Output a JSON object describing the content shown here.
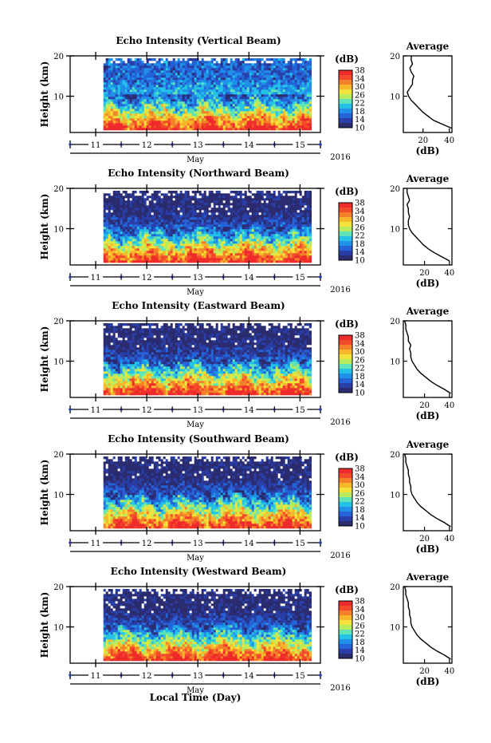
{
  "figure": {
    "xlabel": "Local Time (Day)",
    "month_label": "May",
    "year_label": "2016",
    "colorbar_unit": "(dB)",
    "average_title": "Average",
    "average_xlabel": "(dB)",
    "colors": {
      "cmap": [
        "#2b2c6f",
        "#2a3ea8",
        "#2563d8",
        "#1f91e8",
        "#22c3e6",
        "#5fe3b8",
        "#b8ec5c",
        "#f2e23a",
        "#f7b72a",
        "#f5802a",
        "#f24a2a",
        "#ee2a2a"
      ]
    }
  },
  "chart_data": [
    {
      "type": "heatmap",
      "title": "Echo Intensity (Vertical Beam)",
      "ylabel": "Height (km)",
      "xlim": [
        10.5,
        15.4
      ],
      "ylim": [
        1,
        20
      ],
      "x_ticks": [
        11,
        12,
        13,
        14,
        15
      ],
      "y_ticks": [
        10,
        20
      ],
      "data_x_range": [
        11.15,
        15.25
      ],
      "colorbar_ticks": [
        10,
        14,
        18,
        22,
        26,
        30,
        34,
        38
      ],
      "clim": [
        10,
        38
      ],
      "average_profile": {
        "xlim": [
          5,
          42
        ],
        "x_ticks": [
          20,
          40
        ],
        "ylim": [
          1,
          20
        ],
        "y_ticks": [
          10,
          20
        ],
        "height": [
          2,
          3,
          4,
          5,
          6,
          7,
          8,
          9,
          10,
          11,
          12,
          13,
          14,
          15,
          16,
          17,
          18,
          19,
          20
        ],
        "db": [
          42,
          35,
          28,
          24,
          20,
          17,
          14,
          11,
          9,
          8,
          10,
          12,
          12,
          13,
          11,
          10,
          12,
          11,
          11
        ]
      }
    },
    {
      "type": "heatmap",
      "title": "Echo Intensity (Northward Beam)",
      "ylabel": "Height (km)",
      "xlim": [
        10.5,
        15.4
      ],
      "ylim": [
        1,
        20
      ],
      "x_ticks": [
        11,
        12,
        13,
        14,
        15
      ],
      "y_ticks": [
        10,
        20
      ],
      "data_x_range": [
        11.15,
        15.25
      ],
      "colorbar_ticks": [
        10,
        14,
        18,
        22,
        26,
        30,
        34,
        38
      ],
      "clim": [
        10,
        38
      ],
      "average_profile": {
        "xlim": [
          3,
          42
        ],
        "x_ticks": [
          20,
          40
        ],
        "ylim": [
          1,
          20
        ],
        "y_ticks": [
          10,
          20
        ],
        "height": [
          2,
          3,
          4,
          5,
          6,
          7,
          8,
          9,
          10,
          11,
          12,
          13,
          14,
          15,
          16,
          17,
          18,
          19,
          20
        ],
        "db": [
          40,
          34,
          28,
          23,
          19,
          16,
          13,
          10,
          8,
          7,
          7,
          8,
          7,
          7,
          6,
          8,
          7,
          6,
          6
        ]
      }
    },
    {
      "type": "heatmap",
      "title": "Echo Intensity (Eastward Beam)",
      "ylabel": "Height (km)",
      "xlim": [
        10.5,
        15.4
      ],
      "ylim": [
        1,
        20
      ],
      "x_ticks": [
        11,
        12,
        13,
        14,
        15
      ],
      "y_ticks": [
        10,
        20
      ],
      "data_x_range": [
        11.15,
        15.25
      ],
      "colorbar_ticks": [
        10,
        14,
        18,
        22,
        26,
        30,
        34,
        38
      ],
      "clim": [
        10,
        38
      ],
      "average_profile": {
        "xlim": [
          3,
          42
        ],
        "x_ticks": [
          20,
          40
        ],
        "ylim": [
          1,
          20
        ],
        "y_ticks": [
          10,
          20
        ],
        "height": [
          2,
          3,
          4,
          5,
          6,
          7,
          8,
          9,
          10,
          11,
          12,
          13,
          14,
          15,
          16,
          17,
          18,
          19,
          20
        ],
        "db": [
          41,
          36,
          30,
          25,
          21,
          17,
          14,
          12,
          10,
          9,
          9,
          8,
          9,
          7,
          7,
          6,
          5,
          5,
          4
        ]
      }
    },
    {
      "type": "heatmap",
      "title": "Echo Intensity (Southward Beam)",
      "ylabel": "Height (km)",
      "xlim": [
        10.5,
        15.4
      ],
      "ylim": [
        1,
        20
      ],
      "x_ticks": [
        11,
        12,
        13,
        14,
        15
      ],
      "y_ticks": [
        10,
        20
      ],
      "data_x_range": [
        11.15,
        15.25
      ],
      "colorbar_ticks": [
        10,
        14,
        18,
        22,
        26,
        30,
        34,
        38
      ],
      "clim": [
        10,
        38
      ],
      "average_profile": {
        "xlim": [
          3,
          42
        ],
        "x_ticks": [
          20,
          40
        ],
        "ylim": [
          1,
          20
        ],
        "y_ticks": [
          10,
          20
        ],
        "height": [
          2,
          3,
          4,
          5,
          6,
          7,
          8,
          9,
          10,
          11,
          12,
          13,
          14,
          15,
          16,
          17,
          18,
          19,
          20
        ],
        "db": [
          41,
          36,
          30,
          25,
          21,
          17,
          14,
          12,
          10,
          9,
          9,
          8,
          8,
          7,
          7,
          6,
          5,
          5,
          4
        ]
      }
    },
    {
      "type": "heatmap",
      "title": "Echo Intensity (Westward Beam)",
      "ylabel": "Height (km)",
      "xlim": [
        10.5,
        15.4
      ],
      "ylim": [
        1,
        20
      ],
      "x_ticks": [
        11,
        12,
        13,
        14,
        15
      ],
      "y_ticks": [
        10,
        20
      ],
      "data_x_range": [
        11.15,
        15.25
      ],
      "colorbar_ticks": [
        10,
        14,
        18,
        22,
        26,
        30,
        34,
        38
      ],
      "clim": [
        10,
        38
      ],
      "average_profile": {
        "xlim": [
          3,
          42
        ],
        "x_ticks": [
          20,
          40
        ],
        "ylim": [
          1,
          20
        ],
        "y_ticks": [
          10,
          20
        ],
        "height": [
          2,
          3,
          4,
          5,
          6,
          7,
          8,
          9,
          10,
          11,
          12,
          13,
          14,
          15,
          16,
          17,
          18,
          19,
          20
        ],
        "db": [
          41,
          36,
          30,
          25,
          21,
          17,
          14,
          12,
          10,
          9,
          9,
          8,
          8,
          7,
          7,
          6,
          5,
          5,
          4
        ]
      }
    }
  ]
}
